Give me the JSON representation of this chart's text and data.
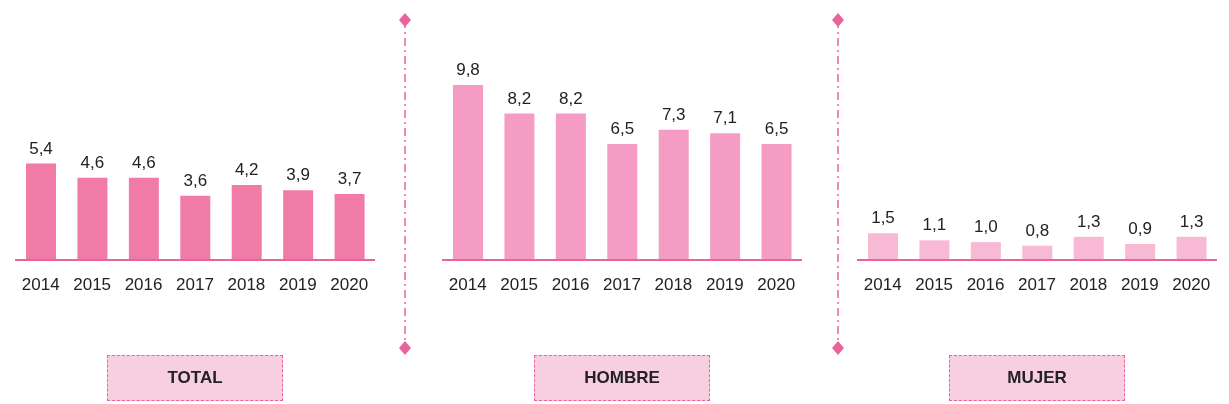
{
  "chart_data": [
    {
      "type": "bar",
      "xlabel": "TOTAL",
      "categories": [
        "2014",
        "2015",
        "2016",
        "2017",
        "2018",
        "2019",
        "2020"
      ],
      "values": [
        5.4,
        4.6,
        4.6,
        3.6,
        4.2,
        3.9,
        3.7
      ],
      "color": "#f07ba7",
      "value_labels": [
        "5,4",
        "4,6",
        "4,6",
        "3,6",
        "4,2",
        "3,9",
        "3,7"
      ],
      "tick_labels": "x",
      "grid": false,
      "legend": false
    },
    {
      "type": "bar",
      "xlabel": "HOMBRE",
      "categories": [
        "2014",
        "2015",
        "2016",
        "2017",
        "2018",
        "2019",
        "2020"
      ],
      "values": [
        9.8,
        8.2,
        8.2,
        6.5,
        7.3,
        7.1,
        6.5
      ],
      "color": "#f49cc3",
      "value_labels": [
        "9,8",
        "8,2",
        "8,2",
        "6,5",
        "7,3",
        "7,1",
        "6,5"
      ],
      "tick_labels": "x",
      "grid": false,
      "legend": false
    },
    {
      "type": "bar",
      "xlabel": "MUJER",
      "categories": [
        "2014",
        "2015",
        "2016",
        "2017",
        "2018",
        "2019",
        "2020"
      ],
      "values": [
        1.5,
        1.1,
        1.0,
        0.8,
        1.3,
        0.9,
        1.3
      ],
      "color": "#f7b9d4",
      "value_labels": [
        "1,5",
        "1,1",
        "1,0",
        "0,8",
        "1,3",
        "0,9",
        "1,3"
      ],
      "tick_labels": "x",
      "grid": false,
      "legend": false
    }
  ]
}
